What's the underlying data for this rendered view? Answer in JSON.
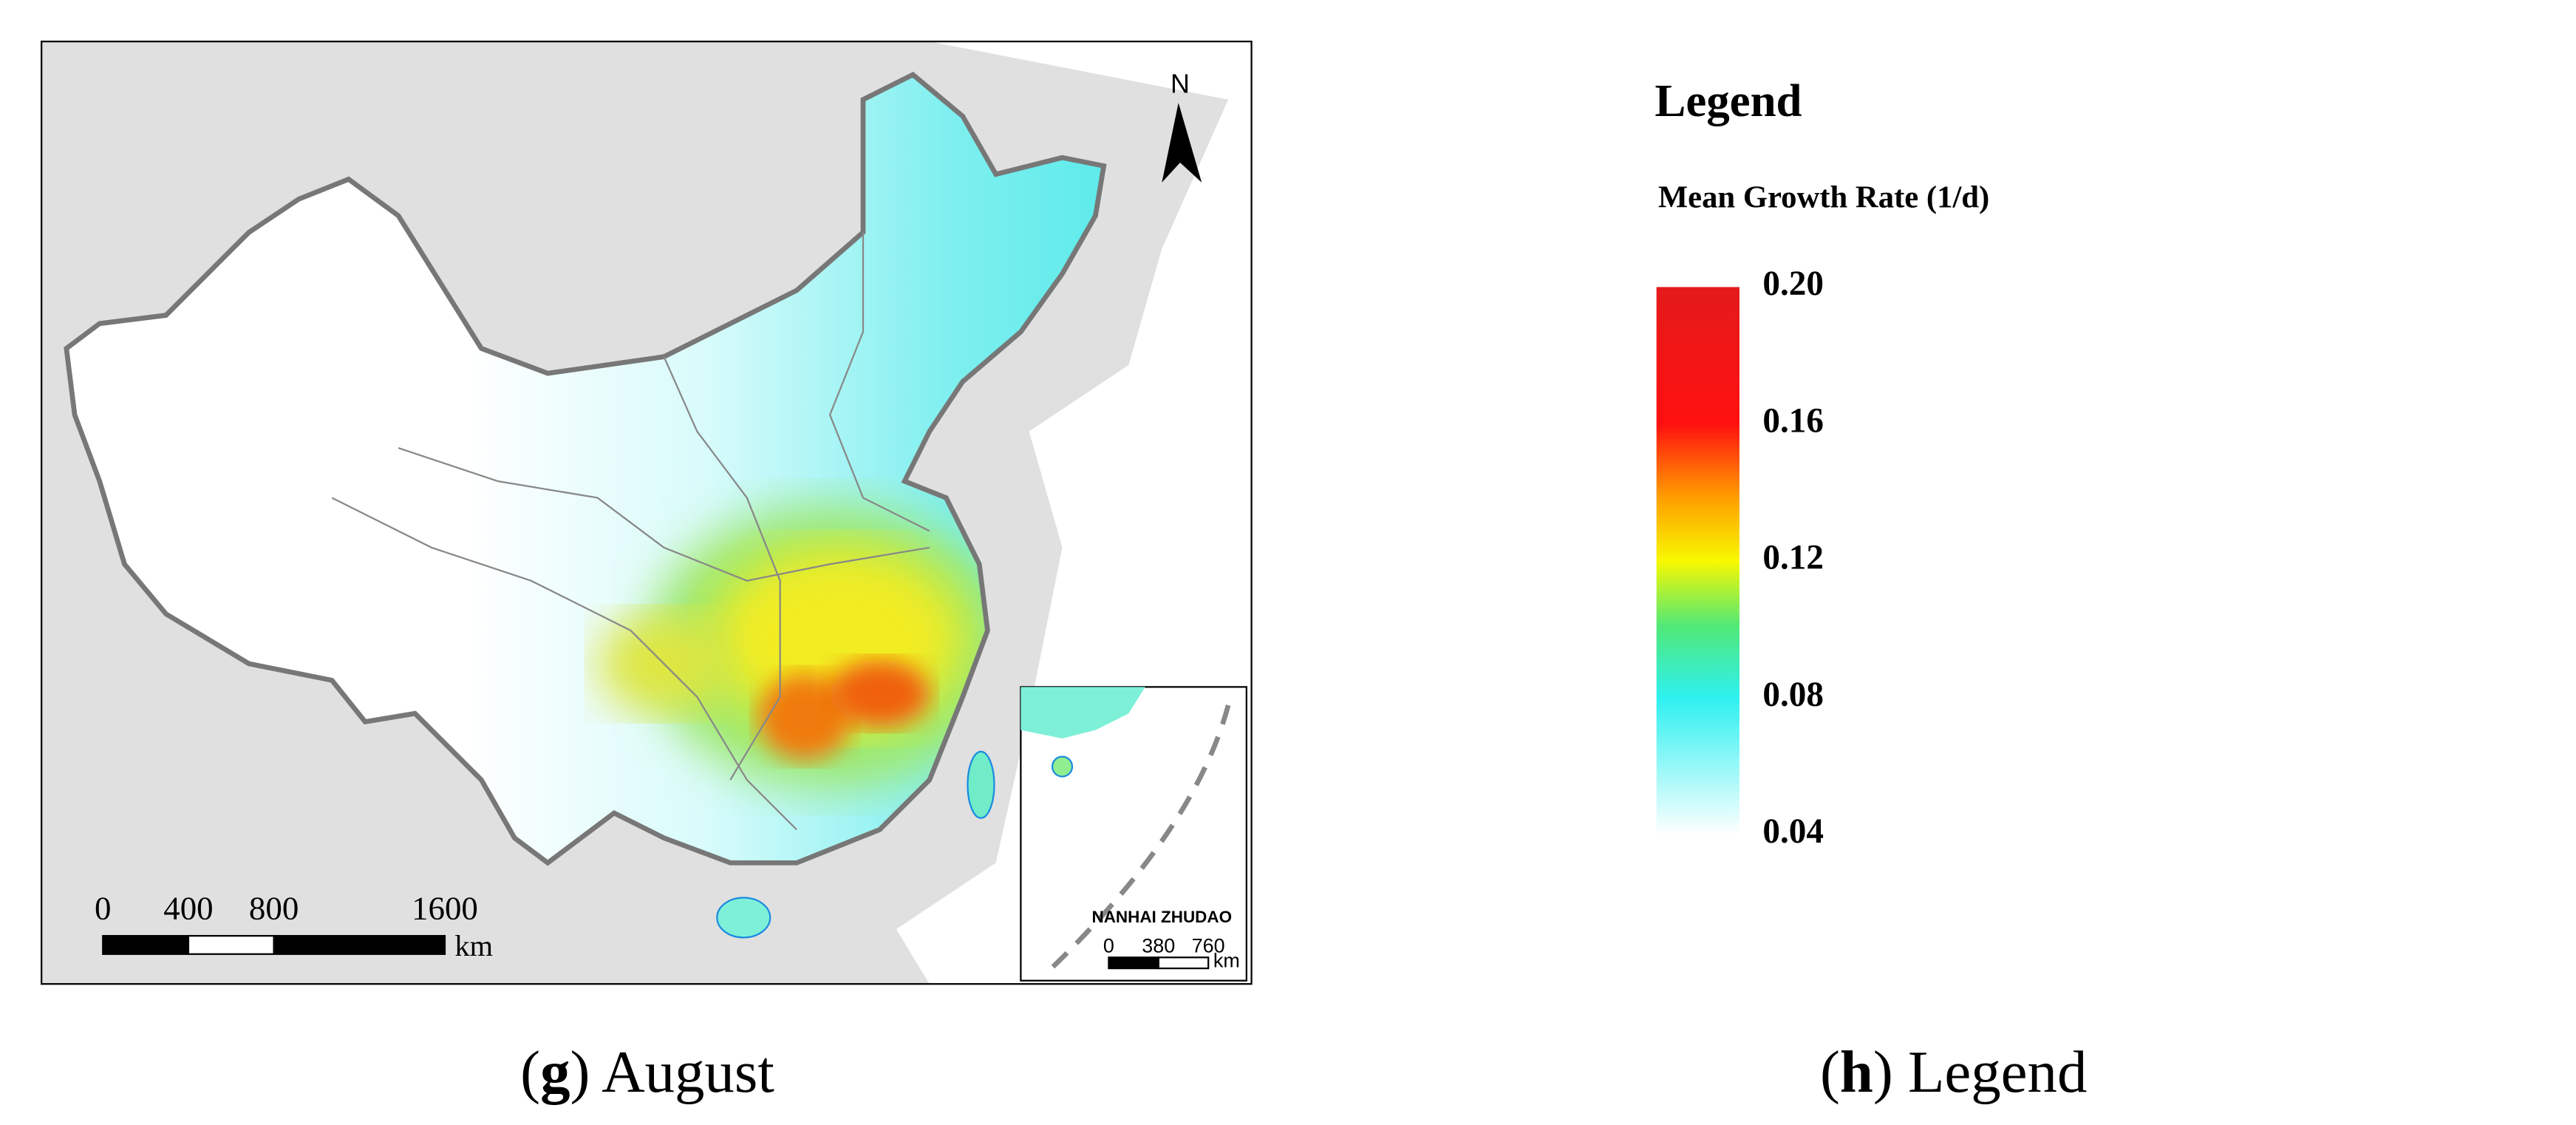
{
  "map": {
    "north": "N",
    "scale_bar": {
      "ticks": [
        0,
        400,
        800,
        1600
      ],
      "unit": "km"
    },
    "inset": {
      "title": "NANHAI ZHUDAO",
      "scale_bar": {
        "ticks": [
          0,
          380,
          760
        ],
        "unit": "km"
      }
    }
  },
  "legend": {
    "title": "Legend",
    "subtitle": "Mean Growth Rate (1/d)",
    "ticks": [
      {
        "value": 0.2,
        "label": "0.20"
      },
      {
        "value": 0.16,
        "label": "0.16"
      },
      {
        "value": 0.12,
        "label": "0.12"
      },
      {
        "value": 0.08,
        "label": "0.08"
      },
      {
        "value": 0.04,
        "label": "0.04"
      }
    ]
  },
  "captions": [
    {
      "prefix": "(",
      "letter": "g",
      "suffix": ") August"
    },
    {
      "prefix": "(",
      "letter": "h",
      "suffix": ") Legend"
    }
  ]
}
